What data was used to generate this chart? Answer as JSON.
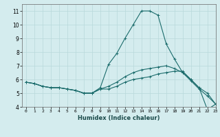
{
  "xlabel": "Humidex (Indice chaleur)",
  "ylabel": "",
  "bg_color": "#d4ecee",
  "grid_color": "#b8d8da",
  "line_color": "#1a6b6b",
  "xlim": [
    -0.5,
    23
  ],
  "ylim": [
    4,
    11.5
  ],
  "xticks": [
    0,
    1,
    2,
    3,
    4,
    5,
    6,
    7,
    8,
    9,
    10,
    11,
    12,
    13,
    14,
    15,
    16,
    17,
    18,
    19,
    20,
    21,
    22,
    23
  ],
  "yticks": [
    4,
    5,
    6,
    7,
    8,
    9,
    10,
    11
  ],
  "line1_x": [
    0,
    1,
    2,
    3,
    4,
    5,
    6,
    7,
    8,
    9,
    10,
    11,
    12,
    13,
    14,
    15,
    16,
    17,
    18,
    19,
    20,
    21,
    22,
    23
  ],
  "line1_y": [
    5.8,
    5.7,
    5.5,
    5.4,
    5.4,
    5.3,
    5.2,
    5.0,
    5.0,
    5.3,
    5.3,
    5.5,
    5.8,
    6.0,
    6.1,
    6.2,
    6.4,
    6.5,
    6.6,
    6.6,
    6.0,
    5.4,
    5.0,
    4.2
  ],
  "line2_x": [
    0,
    1,
    2,
    3,
    4,
    5,
    6,
    7,
    8,
    9,
    10,
    11,
    12,
    13,
    14,
    15,
    16,
    17,
    18,
    19,
    20,
    21,
    22,
    23
  ],
  "line2_y": [
    5.8,
    5.7,
    5.5,
    5.4,
    5.4,
    5.3,
    5.2,
    5.0,
    5.0,
    5.4,
    7.1,
    7.9,
    9.0,
    10.0,
    11.0,
    11.0,
    10.7,
    8.6,
    7.5,
    6.5,
    6.0,
    5.4,
    3.8,
    4.2
  ],
  "line3_x": [
    0,
    1,
    2,
    3,
    4,
    5,
    6,
    7,
    8,
    9,
    10,
    11,
    12,
    13,
    14,
    15,
    16,
    17,
    18,
    19,
    20,
    21,
    22,
    23
  ],
  "line3_y": [
    5.8,
    5.7,
    5.5,
    5.4,
    5.4,
    5.3,
    5.2,
    5.0,
    5.0,
    5.3,
    5.5,
    5.8,
    6.2,
    6.5,
    6.7,
    6.8,
    6.9,
    7.0,
    6.8,
    6.5,
    5.9,
    5.3,
    4.8,
    4.2
  ]
}
